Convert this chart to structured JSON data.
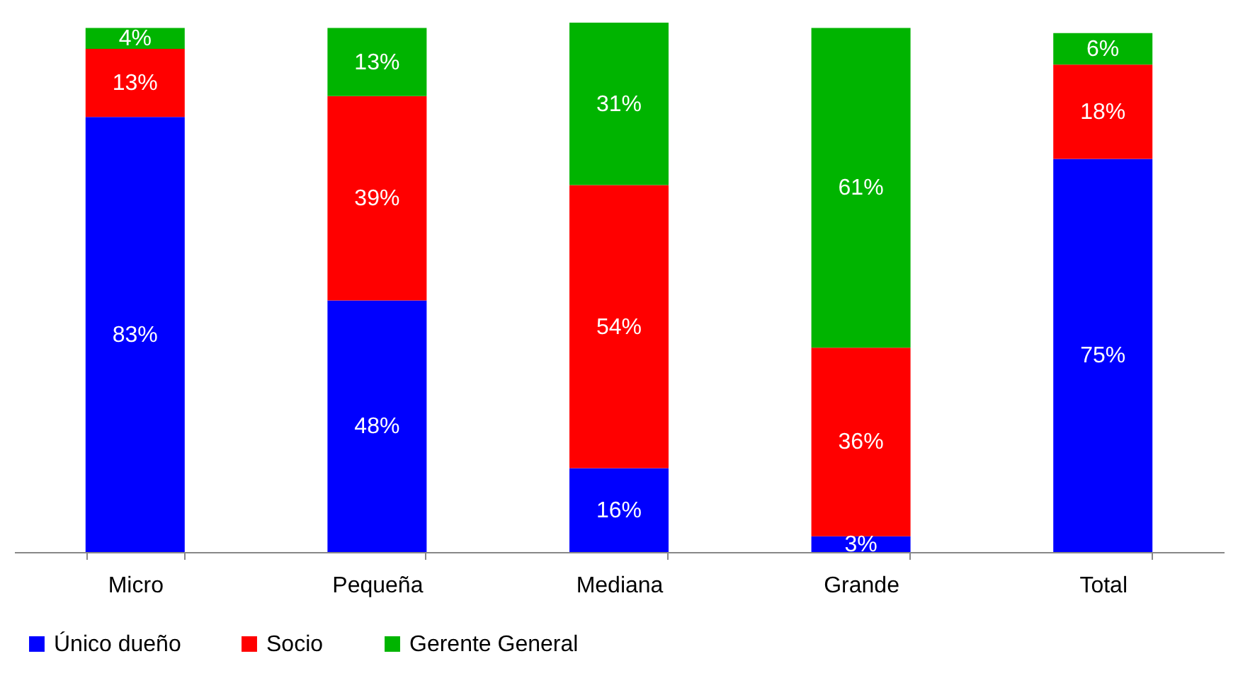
{
  "chart_data": {
    "type": "bar",
    "stacked": true,
    "grid": false,
    "legend": "bottom",
    "tick_labels": "x",
    "categories": [
      "Micro",
      "Pequeña",
      "Mediana",
      "Grande",
      "Total"
    ],
    "series": [
      {
        "name": "Único dueño",
        "color": "#0000ff",
        "values": [
          83,
          48,
          16,
          3,
          75
        ],
        "value_labels": [
          "83%",
          "48%",
          "16%",
          "3%",
          "75%"
        ]
      },
      {
        "name": "Socio",
        "color": "#ff0000",
        "values": [
          13,
          39,
          54,
          36,
          18
        ],
        "value_labels": [
          "13%",
          "39%",
          "54%",
          "36%",
          "18%"
        ]
      },
      {
        "name": "Gerente General",
        "color": "#00b400",
        "values": [
          4,
          13,
          31,
          61,
          6
        ],
        "value_labels": [
          "4%",
          "13%",
          "31%",
          "61%",
          "6%"
        ]
      }
    ]
  }
}
